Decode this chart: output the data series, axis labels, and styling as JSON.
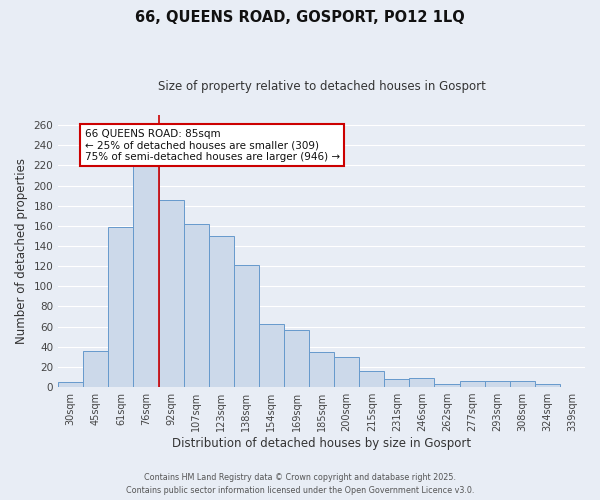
{
  "title": "66, QUEENS ROAD, GOSPORT, PO12 1LQ",
  "subtitle": "Size of property relative to detached houses in Gosport",
  "xlabel": "Distribution of detached houses by size in Gosport",
  "ylabel": "Number of detached properties",
  "categories": [
    "30sqm",
    "45sqm",
    "61sqm",
    "76sqm",
    "92sqm",
    "107sqm",
    "123sqm",
    "138sqm",
    "154sqm",
    "169sqm",
    "185sqm",
    "200sqm",
    "215sqm",
    "231sqm",
    "246sqm",
    "262sqm",
    "277sqm",
    "293sqm",
    "308sqm",
    "324sqm",
    "339sqm"
  ],
  "values": [
    5,
    36,
    159,
    219,
    186,
    162,
    150,
    121,
    63,
    57,
    35,
    30,
    16,
    8,
    9,
    3,
    6,
    6,
    6,
    3,
    0
  ],
  "bar_color": "#ccd9ea",
  "bar_edge_color": "#6699cc",
  "background_color": "#e8edf5",
  "grid_color": "#ffffff",
  "annotation_text_line1": "66 QUEENS ROAD: 85sqm",
  "annotation_text_line2": "← 25% of detached houses are smaller (309)",
  "annotation_text_line3": "75% of semi-detached houses are larger (946) →",
  "annotation_box_color": "#ffffff",
  "annotation_box_edge_color": "#cc0000",
  "vline_color": "#cc0000",
  "ylim": [
    0,
    270
  ],
  "yticks": [
    0,
    20,
    40,
    60,
    80,
    100,
    120,
    140,
    160,
    180,
    200,
    220,
    240,
    260
  ],
  "footer_line1": "Contains HM Land Registry data © Crown copyright and database right 2025.",
  "footer_line2": "Contains public sector information licensed under the Open Government Licence v3.0."
}
